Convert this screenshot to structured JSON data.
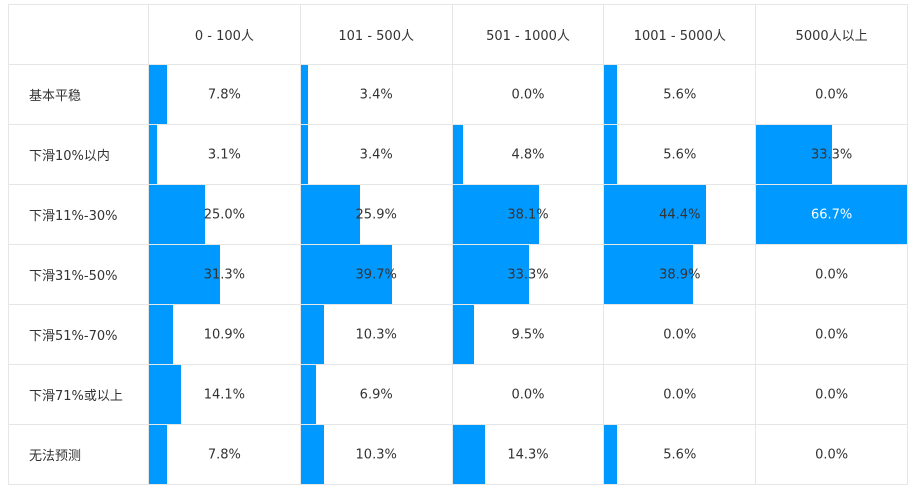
{
  "chart_data": {
    "type": "table",
    "columns": [
      "0 - 100人",
      "101 - 500人",
      "501 - 1000人",
      "1001 - 5000人",
      "5000人以上"
    ],
    "rows": [
      {
        "label": "基本平稳",
        "values": [
          7.8,
          3.4,
          0.0,
          5.6,
          0.0
        ]
      },
      {
        "label": "下滑10%以内",
        "values": [
          3.1,
          3.4,
          4.8,
          5.6,
          33.3
        ]
      },
      {
        "label": "下滑11%-30%",
        "values": [
          25.0,
          25.9,
          38.1,
          44.4,
          66.7
        ]
      },
      {
        "label": "下滑31%-50%",
        "values": [
          31.3,
          39.7,
          33.3,
          38.9,
          0.0
        ]
      },
      {
        "label": "下滑51%-70%",
        "values": [
          10.9,
          10.3,
          9.5,
          0.0,
          0.0
        ]
      },
      {
        "label": "下滑71%或以上",
        "values": [
          14.1,
          6.9,
          0.0,
          0.0,
          0.0
        ]
      },
      {
        "label": "无法预测",
        "values": [
          7.8,
          10.3,
          14.3,
          5.6,
          0.0
        ]
      }
    ],
    "value_suffix": "%",
    "bar_color": "#0099ff",
    "bar_scale_max": 66.7
  }
}
